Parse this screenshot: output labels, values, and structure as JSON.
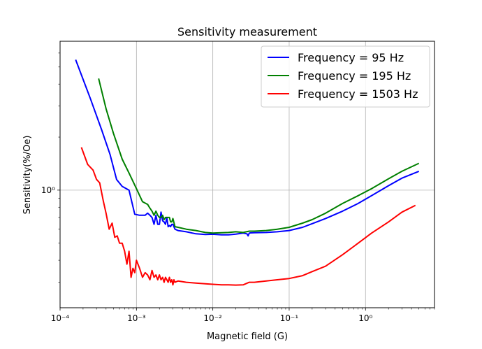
{
  "chart_data": {
    "type": "line",
    "title": "Sensitivity measurement",
    "xlabel": "Magnetic field (G)",
    "ylabel": "Sensitivity(%/Oe)",
    "xscale": "log",
    "yscale": "log",
    "xlim": [
      0.0001,
      8
    ],
    "ylim": [
      0.215,
      7.0
    ],
    "grid": true,
    "legend_position": "top-right",
    "x_ticks": [
      {
        "value": 0.0001,
        "label": "10⁻⁴"
      },
      {
        "value": 0.001,
        "label": "10⁻³"
      },
      {
        "value": 0.01,
        "label": "10⁻²"
      },
      {
        "value": 0.1,
        "label": "10⁻¹"
      },
      {
        "value": 1,
        "label": "10⁰"
      }
    ],
    "y_ticks": [
      {
        "value": 1,
        "label": "10⁰"
      }
    ],
    "series": [
      {
        "name": "Frequency = 95 Hz",
        "color": "#0000ff",
        "x": [
          0.00016,
          0.00025,
          0.00035,
          0.00045,
          0.00055,
          0.00065,
          0.0008,
          0.00095,
          0.0011,
          0.0013,
          0.0014,
          0.0015,
          0.0016,
          0.0017,
          0.0018,
          0.0019,
          0.002,
          0.0021,
          0.0022,
          0.0023,
          0.0024,
          0.0025,
          0.0026,
          0.0027,
          0.0028,
          0.0029,
          0.003,
          0.0032,
          0.0035,
          0.0045,
          0.006,
          0.008,
          0.01,
          0.013,
          0.016,
          0.02,
          0.025,
          0.028,
          0.029,
          0.03,
          0.031,
          0.035,
          0.05,
          0.07,
          0.1,
          0.15,
          0.2,
          0.3,
          0.5,
          0.8,
          1.2,
          2.0,
          3.0,
          5.0
        ],
        "y": [
          5.5,
          3.3,
          2.2,
          1.6,
          1.15,
          1.05,
          1.0,
          0.73,
          0.72,
          0.72,
          0.74,
          0.72,
          0.7,
          0.64,
          0.72,
          0.64,
          0.64,
          0.75,
          0.67,
          0.66,
          0.64,
          0.7,
          0.62,
          0.63,
          0.62,
          0.64,
          0.64,
          0.6,
          0.59,
          0.58,
          0.565,
          0.56,
          0.562,
          0.558,
          0.558,
          0.563,
          0.57,
          0.565,
          0.55,
          0.57,
          0.572,
          0.573,
          0.575,
          0.58,
          0.59,
          0.615,
          0.645,
          0.69,
          0.76,
          0.84,
          0.93,
          1.06,
          1.17,
          1.28
        ]
      },
      {
        "name": "Frequency = 195 Hz",
        "color": "#008000",
        "x": [
          0.00032,
          0.0004,
          0.0005,
          0.00065,
          0.0008,
          0.001,
          0.0012,
          0.0014,
          0.0015,
          0.0016,
          0.0017,
          0.0018,
          0.0019,
          0.002,
          0.0021,
          0.0022,
          0.0023,
          0.0024,
          0.0025,
          0.0026,
          0.0027,
          0.0028,
          0.0029,
          0.003,
          0.0032,
          0.0035,
          0.0045,
          0.006,
          0.008,
          0.01,
          0.013,
          0.016,
          0.02,
          0.025,
          0.03,
          0.035,
          0.05,
          0.07,
          0.1,
          0.15,
          0.2,
          0.3,
          0.5,
          0.8,
          1.2,
          2.0,
          3.0,
          5.0
        ],
        "y": [
          4.3,
          2.9,
          2.1,
          1.5,
          1.25,
          1.02,
          0.86,
          0.83,
          0.79,
          0.76,
          0.72,
          0.76,
          0.72,
          0.7,
          0.7,
          0.72,
          0.68,
          0.7,
          0.7,
          0.7,
          0.7,
          0.66,
          0.66,
          0.69,
          0.62,
          0.615,
          0.6,
          0.59,
          0.575,
          0.57,
          0.573,
          0.575,
          0.58,
          0.575,
          0.585,
          0.585,
          0.59,
          0.6,
          0.615,
          0.65,
          0.68,
          0.74,
          0.84,
          0.93,
          1.02,
          1.16,
          1.28,
          1.42
        ]
      },
      {
        "name": "Frequency = 1503 Hz",
        "color": "#ff0000",
        "x": [
          0.00019,
          0.00023,
          0.00027,
          0.0003,
          0.00033,
          0.00037,
          0.0004,
          0.00044,
          0.00048,
          0.00052,
          0.00056,
          0.0006,
          0.00065,
          0.0007,
          0.00075,
          0.0008,
          0.00085,
          0.0009,
          0.00095,
          0.001,
          0.0011,
          0.0012,
          0.0013,
          0.0014,
          0.0015,
          0.0016,
          0.0017,
          0.0018,
          0.0019,
          0.002,
          0.0021,
          0.0022,
          0.0023,
          0.0024,
          0.0025,
          0.0026,
          0.0027,
          0.0028,
          0.0029,
          0.003,
          0.0031,
          0.0032,
          0.0035,
          0.0045,
          0.006,
          0.008,
          0.01,
          0.013,
          0.016,
          0.02,
          0.025,
          0.03,
          0.035,
          0.05,
          0.07,
          0.1,
          0.15,
          0.2,
          0.3,
          0.5,
          0.8,
          1.2,
          2.0,
          3.0,
          4.5
        ],
        "y": [
          1.75,
          1.4,
          1.3,
          1.15,
          1.1,
          0.86,
          0.74,
          0.6,
          0.65,
          0.54,
          0.55,
          0.5,
          0.5,
          0.45,
          0.38,
          0.45,
          0.32,
          0.36,
          0.34,
          0.4,
          0.36,
          0.32,
          0.34,
          0.33,
          0.31,
          0.35,
          0.32,
          0.33,
          0.31,
          0.33,
          0.31,
          0.32,
          0.3,
          0.32,
          0.31,
          0.3,
          0.32,
          0.3,
          0.31,
          0.29,
          0.31,
          0.3,
          0.305,
          0.3,
          0.297,
          0.294,
          0.292,
          0.29,
          0.29,
          0.289,
          0.29,
          0.3,
          0.3,
          0.305,
          0.31,
          0.315,
          0.327,
          0.345,
          0.37,
          0.43,
          0.5,
          0.57,
          0.66,
          0.75,
          0.82
        ]
      }
    ]
  }
}
